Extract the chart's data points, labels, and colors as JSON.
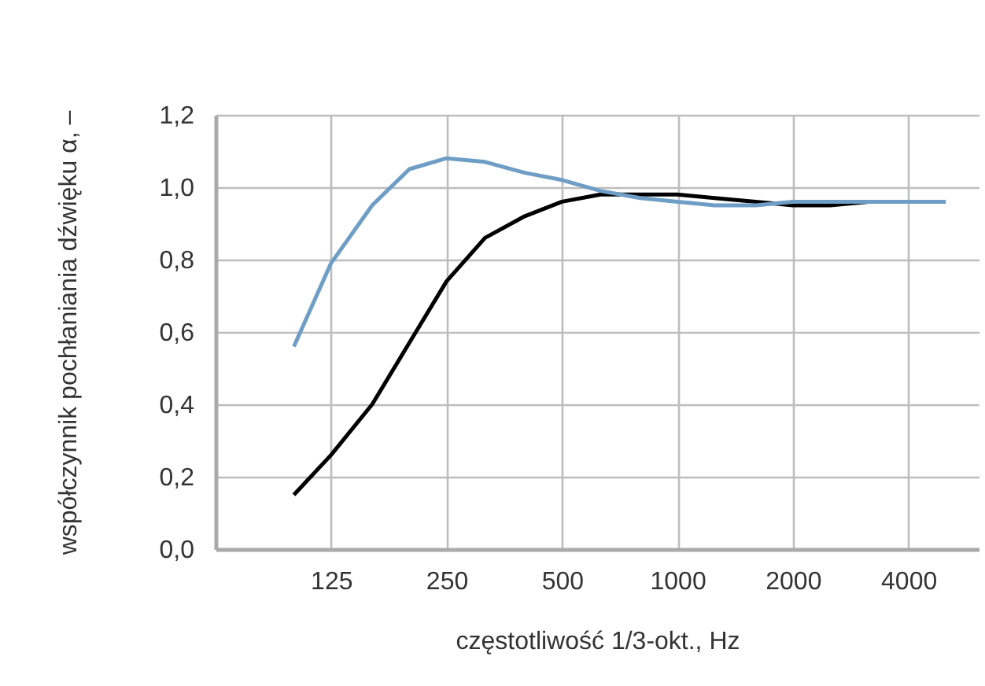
{
  "chart_data": {
    "type": "line",
    "xlabel": "częstotliwość 1/3-okt., Hz",
    "ylabel": "współczynnik pochłaniania dźwięku α, –",
    "x": [
      100,
      125,
      160,
      200,
      250,
      315,
      400,
      500,
      630,
      800,
      1000,
      1250,
      1600,
      2000,
      2500,
      3150,
      4000,
      5000
    ],
    "log": "x",
    "xlim": [
      62.5,
      6100
    ],
    "xticks": [
      125,
      250,
      500,
      1000,
      2000,
      4000
    ],
    "ylim": [
      0,
      1.2
    ],
    "yticks": [
      {
        "value": 0,
        "label": "0,0"
      },
      {
        "value": 0.2,
        "label": "0,2"
      },
      {
        "value": 0.4,
        "label": "0,4"
      },
      {
        "value": 0.6,
        "label": "0,6"
      },
      {
        "value": 0.8,
        "label": "0,8"
      },
      {
        "value": 1.0,
        "label": "1,0"
      },
      {
        "value": 1.2,
        "label": "1,2"
      }
    ],
    "grid": true,
    "series": [
      {
        "color": "#000000",
        "values": [
          0.15,
          0.26,
          0.4,
          0.57,
          0.74,
          0.86,
          0.92,
          0.96,
          0.98,
          0.98,
          0.98,
          0.97,
          0.96,
          0.95,
          0.95,
          0.96,
          0.96,
          0.96
        ]
      },
      {
        "color": "#6e9ec5",
        "values": [
          0.56,
          0.79,
          0.95,
          1.05,
          1.08,
          1.07,
          1.04,
          1.02,
          0.99,
          0.97,
          0.96,
          0.95,
          0.95,
          0.96,
          0.96,
          0.96,
          0.96,
          0.96
        ]
      }
    ]
  }
}
